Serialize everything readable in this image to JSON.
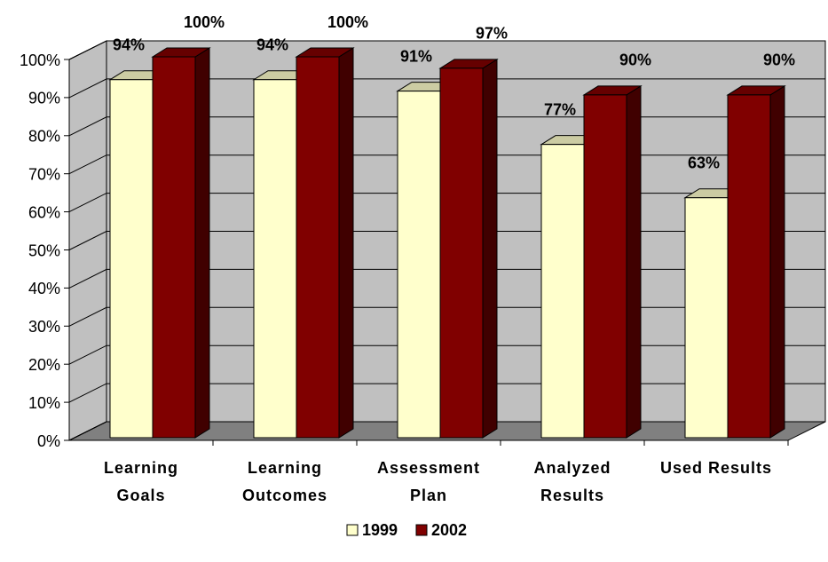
{
  "chart_data": {
    "type": "bar3d",
    "categories": [
      "Learning Goals",
      "Learning Outcomes",
      "Assessment Plan",
      "Analyzed Results",
      "Used Results"
    ],
    "series": [
      {
        "name": "1999",
        "color": "#ffffcc",
        "values": [
          94,
          94,
          91,
          77,
          63
        ],
        "value_labels": [
          "94%",
          "94%",
          "91%",
          "77%",
          "63%"
        ]
      },
      {
        "name": "2002",
        "color": "#800000",
        "values": [
          100,
          100,
          97,
          90,
          90
        ],
        "value_labels": [
          "100%",
          "100%",
          "97%",
          "90%",
          "90%"
        ]
      }
    ],
    "ylim": [
      0,
      100
    ],
    "yticks": [
      {
        "value": 0,
        "label": "0%"
      },
      {
        "value": 10,
        "label": "10%"
      },
      {
        "value": 20,
        "label": "20%"
      },
      {
        "value": 30,
        "label": "30%"
      },
      {
        "value": 40,
        "label": "40%"
      },
      {
        "value": 50,
        "label": "50%"
      },
      {
        "value": 60,
        "label": "60%"
      },
      {
        "value": 70,
        "label": "70%"
      },
      {
        "value": 80,
        "label": "80%"
      },
      {
        "value": 90,
        "label": "90%"
      },
      {
        "value": 100,
        "label": "100%"
      }
    ],
    "grid": true,
    "legend": "bottom"
  }
}
